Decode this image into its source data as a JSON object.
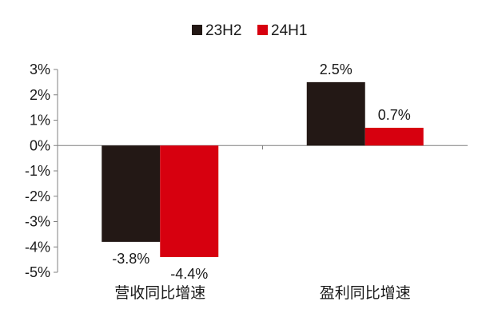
{
  "chart_data": {
    "type": "bar",
    "title": "",
    "xlabel": "",
    "ylabel": "",
    "categories": [
      "营收同比增速",
      "盈利同比增速"
    ],
    "series": [
      {
        "name": "23H2",
        "values": [
          -3.8,
          2.5
        ],
        "labels": [
          "-3.8%",
          "2.5%"
        ],
        "color": "#231815"
      },
      {
        "name": "24H1",
        "values": [
          -4.4,
          0.7
        ],
        "labels": [
          "-4.4%",
          "0.7%"
        ],
        "color": "#d7000f"
      }
    ],
    "ylim": [
      -5,
      3
    ],
    "yticks": [
      3,
      2,
      1,
      0,
      -1,
      -2,
      -3,
      -4,
      -5
    ],
    "ytick_labels": [
      "3%",
      "2%",
      "1%",
      "0%",
      "-1%",
      "-2%",
      "-3%",
      "-4%",
      "-5%"
    ],
    "grid": false,
    "legend_position": "top-center"
  }
}
